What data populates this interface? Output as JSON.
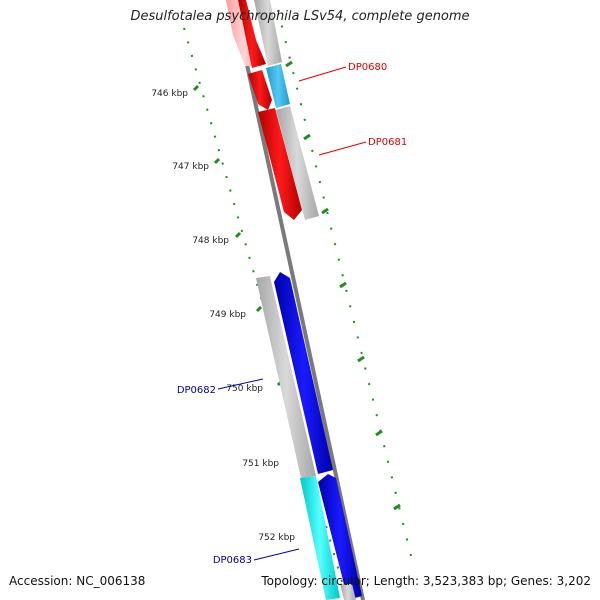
{
  "header": {
    "title": "Desulfotalea psychrophila LSv54, complete genome"
  },
  "footer": {
    "accession": "Accession: NC_006138",
    "summary": "Topology: circular; Length: 3,523,383 bp; Genes: 3,202"
  },
  "ticks": [
    {
      "label": "746 kbp"
    },
    {
      "label": "747 kbp"
    },
    {
      "label": "748 kbp"
    },
    {
      "label": "749 kbp"
    },
    {
      "label": "750 kbp"
    },
    {
      "label": "751 kbp"
    },
    {
      "label": "752 kbp"
    }
  ],
  "genes": [
    {
      "label": "DP0680",
      "color": "#e00000"
    },
    {
      "label": "DP0681",
      "color": "#e00000"
    },
    {
      "label": "DP0682",
      "color": "#0000a0"
    },
    {
      "label": "DP0683",
      "color": "#0000a0"
    }
  ],
  "colors": {
    "forward_cds": "#ff0000",
    "reverse_cds": "#0000ff",
    "trna_forward": "#33bbee",
    "trna_reverse": "#00e6e6",
    "gene_gray": "#c0c0c0",
    "backbone": "#808080",
    "tick_green": "#228b22"
  }
}
